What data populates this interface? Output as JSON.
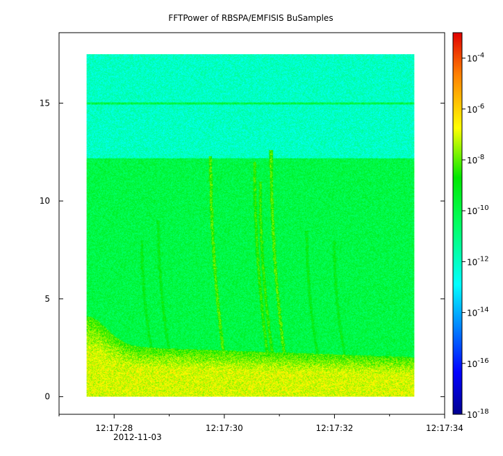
{
  "chart_data": {
    "type": "heatmap",
    "title": "FFTPower of RBSPA/EMFISIS  BuSamples",
    "xlabel": "",
    "ylabel": "",
    "date_label": "2012-11-03",
    "x_ticks": [
      "12:17:28",
      "12:17:30",
      "12:17:32",
      "12:17:34"
    ],
    "x_range_seconds": [
      27.0,
      34.0
    ],
    "data_time_range_seconds": [
      27.5,
      33.45
    ],
    "y_ticks": [
      0,
      5,
      10,
      15
    ],
    "y_range": [
      -0.9,
      18.6
    ],
    "data_freq_range": [
      0,
      17.5
    ],
    "colorbar": {
      "scale": "log",
      "range": [
        1e-18,
        0.001
      ],
      "tick_labels": [
        {
          "base": "10",
          "exp": "-4"
        },
        {
          "base": "10",
          "exp": "-6"
        },
        {
          "base": "10",
          "exp": "-8"
        },
        {
          "base": "10",
          "exp": "-10"
        },
        {
          "base": "10",
          "exp": "-12"
        },
        {
          "base": "10",
          "exp": "-14"
        },
        {
          "base": "10",
          "exp": "-16"
        },
        {
          "base": "10",
          "exp": "-18"
        }
      ]
    },
    "background_levels": {
      "above_12_2": 1e-12,
      "from_4_to_12_2": 1e-10,
      "below_3": 1e-07
    },
    "features": [
      {
        "type": "line",
        "freq": 15.0,
        "level": 1e-10
      },
      {
        "type": "chorus",
        "t": 29.75,
        "f_top": 12.3,
        "level": 1e-08
      },
      {
        "type": "chorus",
        "t": 30.85,
        "f_top": 12.6,
        "level": 1e-08
      },
      {
        "type": "chorus",
        "t": 30.55,
        "f_top": 12.0,
        "level": 5e-09
      },
      {
        "type": "chorus",
        "t": 30.65,
        "f_top": 11.0,
        "level": 5e-09
      },
      {
        "type": "chorus",
        "t": 28.8,
        "f_top": 9.0,
        "level": 1e-09
      },
      {
        "type": "chorus",
        "t": 28.5,
        "f_top": 8.0,
        "level": 1e-09
      },
      {
        "type": "chorus",
        "t": 31.5,
        "f_top": 8.5,
        "level": 1e-09
      },
      {
        "type": "chorus",
        "t": 32.0,
        "f_top": 8.0,
        "level": 1e-09
      }
    ]
  }
}
